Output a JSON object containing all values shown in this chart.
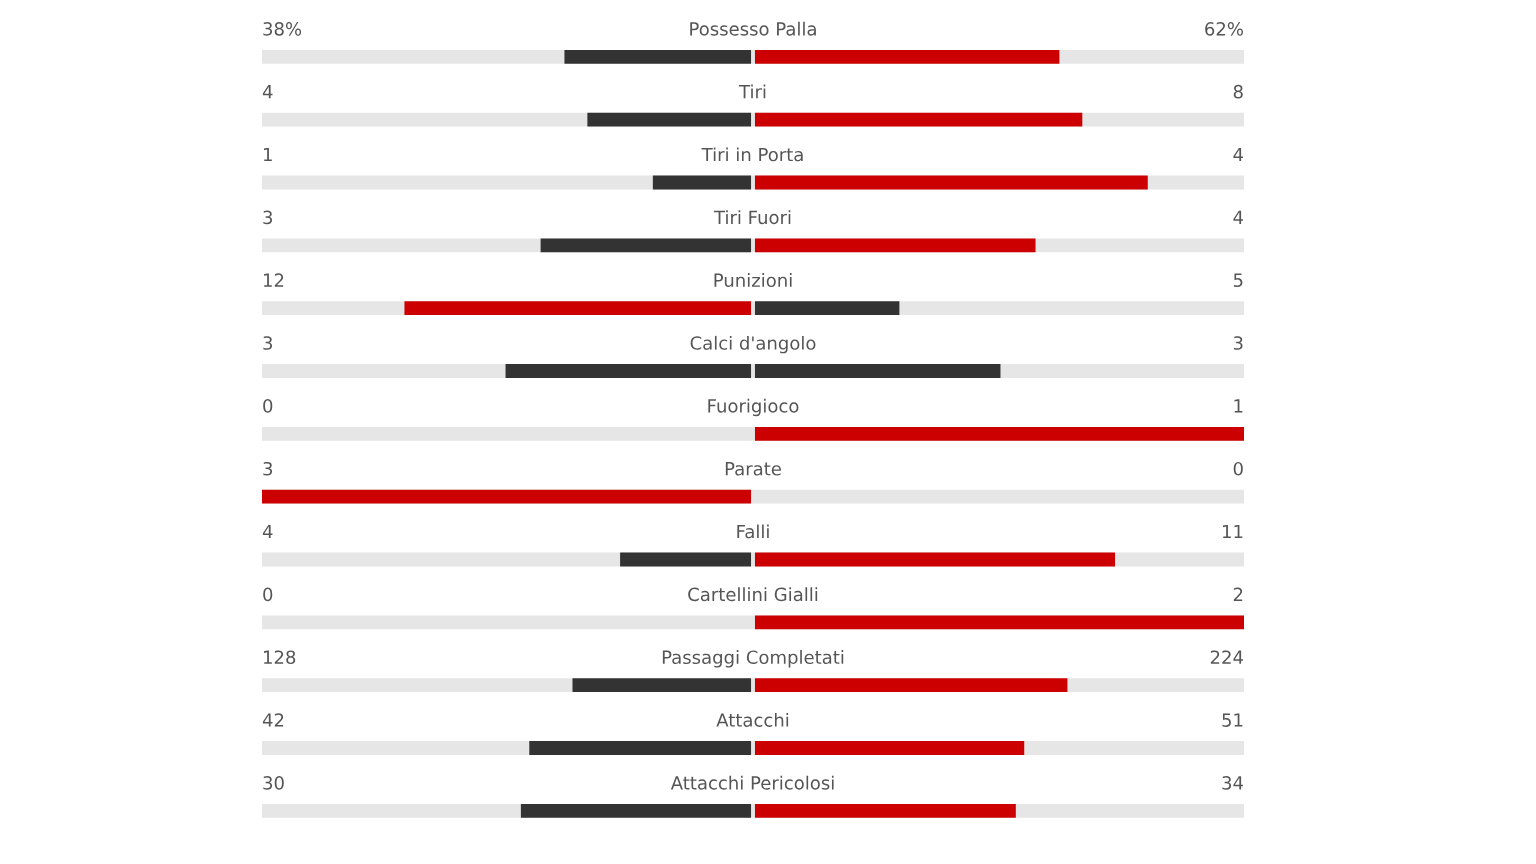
{
  "chart_data": {
    "type": "other",
    "categories": [
      "Possesso Palla",
      "Tiri",
      "Tiri in Porta",
      "Tiri Fuori",
      "Punizioni",
      "Calci d'angolo",
      "Fuorigioco",
      "Parate",
      "Falli",
      "Cartellini Gialli",
      "Passaggi Completati",
      "Attacchi",
      "Attacchi Pericolosi"
    ],
    "series": [
      {
        "values": [
          38,
          4,
          1,
          3,
          12,
          3,
          0,
          3,
          4,
          0,
          128,
          42,
          30
        ],
        "colors": [
          "#333333",
          "#333333",
          "#333333",
          "#333333",
          "#cc0000",
          "#333333",
          "#333333",
          "#cc0000",
          "#333333",
          "#333333",
          "#333333",
          "#333333",
          "#333333"
        ],
        "value_labels": [
          "38%",
          "4",
          "1",
          "3",
          "12",
          "3",
          "0",
          "3",
          "4",
          "0",
          "128",
          "42",
          "30"
        ]
      },
      {
        "values": [
          62,
          8,
          4,
          4,
          5,
          3,
          1,
          0,
          11,
          2,
          224,
          51,
          34
        ],
        "colors": [
          "#cc0000",
          "#cc0000",
          "#cc0000",
          "#cc0000",
          "#333333",
          "#333333",
          "#cc0000",
          "#333333",
          "#cc0000",
          "#cc0000",
          "#cc0000",
          "#cc0000",
          "#cc0000"
        ],
        "value_labels": [
          "62%",
          "8",
          "4",
          "4",
          "5",
          "3",
          "1",
          "0",
          "11",
          "2",
          "224",
          "51",
          "34"
        ]
      }
    ]
  }
}
